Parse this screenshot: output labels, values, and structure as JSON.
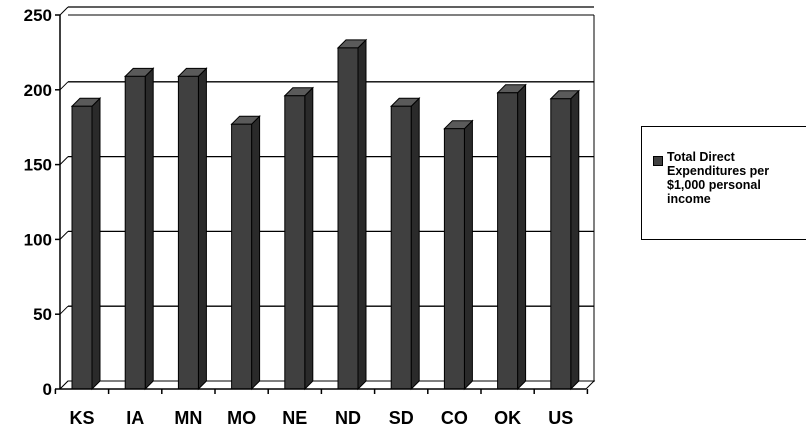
{
  "chart_data": {
    "type": "bar",
    "categories": [
      "KS",
      "IA",
      "MN",
      "MO",
      "NE",
      "ND",
      "SD",
      "CO",
      "OK",
      "US"
    ],
    "series": [
      {
        "name": "Total Direct Expenditures per $1,000 personal income",
        "values": [
          189,
          209,
          209,
          177,
          196,
          228,
          189,
          174,
          198,
          194
        ]
      }
    ],
    "ylim": [
      0,
      250
    ],
    "yticks": [
      0,
      50,
      100,
      150,
      200,
      250
    ],
    "grid": true,
    "legend_position": "right",
    "bar_color": "#404040",
    "bar_side_color": "#2a2a2a",
    "bar_top_color": "#5a5a5a"
  }
}
